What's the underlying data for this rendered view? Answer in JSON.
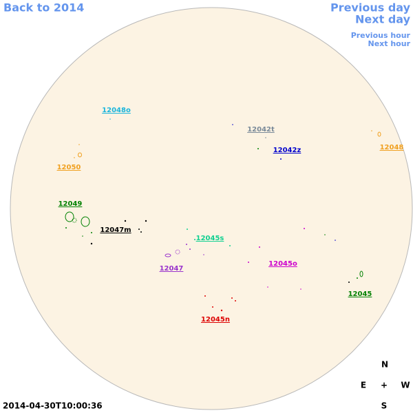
{
  "nav": {
    "back": "Back to 2014",
    "previous_day": "Previous day",
    "next_day": "Next day",
    "previous_hour": "Previous hour",
    "next_hour": "Next hour"
  },
  "regions": [
    {
      "label": "12048o",
      "color": "#1ab5dc"
    },
    {
      "label": "12042t",
      "color": "#7a8a99"
    },
    {
      "label": "12042z",
      "color": "#0000cc"
    },
    {
      "label": "12048",
      "color": "#f0a020"
    },
    {
      "label": "12050",
      "color": "#f0a020"
    },
    {
      "label": "12049",
      "color": "#008000"
    },
    {
      "label": "12047m",
      "color": "#000000"
    },
    {
      "label": "12045s",
      "color": "#10d090"
    },
    {
      "label": "12047",
      "color": "#9932cc"
    },
    {
      "label": "12045o",
      "color": "#cc00cc"
    },
    {
      "label": "12045",
      "color": "#008000"
    },
    {
      "label": "12045n",
      "color": "#dd0000"
    }
  ],
  "compass": {
    "north": "N",
    "east": "E",
    "center": "+",
    "west": "W",
    "south": "S"
  },
  "timestamp": "2014-04-30T10:00:36"
}
